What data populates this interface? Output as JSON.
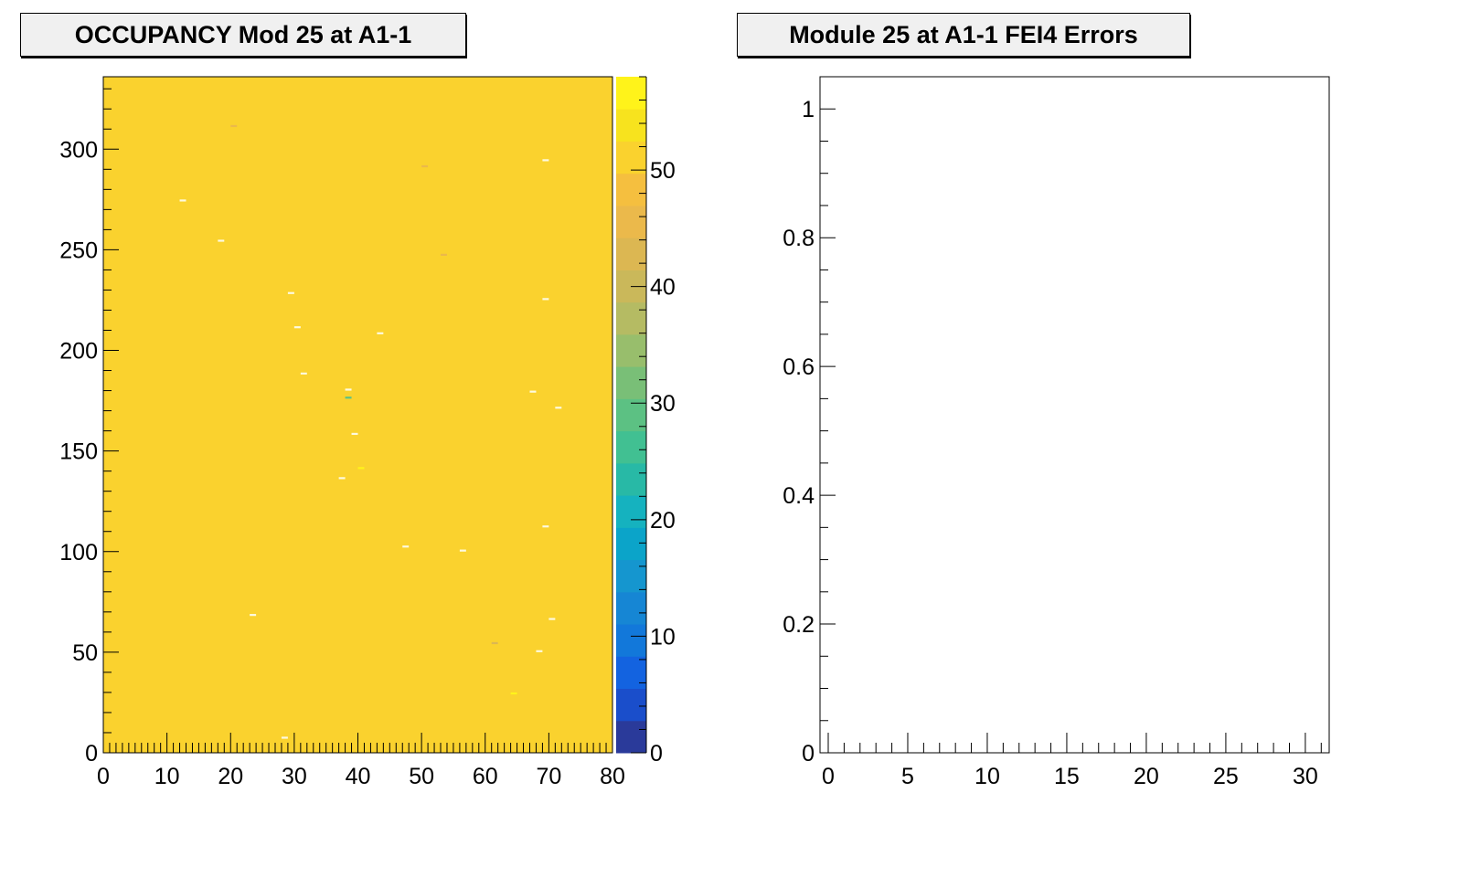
{
  "chart_data": [
    {
      "type": "heatmap",
      "title": "OCCUPANCY Mod 25 at A1-1",
      "xlim": [
        0,
        80
      ],
      "ylim": [
        0,
        336
      ],
      "x_ticks": [
        "0",
        "10",
        "20",
        "30",
        "40",
        "50",
        "60",
        "70",
        "80"
      ],
      "y_ticks": [
        "0",
        "50",
        "100",
        "150",
        "200",
        "250",
        "300"
      ],
      "z_range": [
        0,
        58
      ],
      "z_ticks": [
        "0",
        "10",
        "20",
        "30",
        "40",
        "50"
      ],
      "fill_value": 50,
      "palette": [
        "#2a3a9a",
        "#1a4ecb",
        "#1363e0",
        "#1278da",
        "#1686d4",
        "#1596cf",
        "#0ba4c9",
        "#15b2bf",
        "#28b9a6",
        "#41c092",
        "#5cc183",
        "#79bf77",
        "#98be6c",
        "#b5bb63",
        "#cab85a",
        "#dcb752",
        "#ebb94b",
        "#f5bf3f",
        "#fad22e",
        "#f7e31e",
        "#fff31a"
      ],
      "outliers": [
        {
          "x": 12,
          "y": 274,
          "v": 58
        },
        {
          "x": 18,
          "y": 254,
          "v": 58
        },
        {
          "x": 20,
          "y": 311,
          "v": 46
        },
        {
          "x": 23,
          "y": 68,
          "v": 58
        },
        {
          "x": 28,
          "y": 7,
          "v": 58
        },
        {
          "x": 29,
          "y": 228,
          "v": 58
        },
        {
          "x": 30,
          "y": 211,
          "v": 58
        },
        {
          "x": 31,
          "y": 188,
          "v": 58
        },
        {
          "x": 37,
          "y": 136,
          "v": 58
        },
        {
          "x": 38,
          "y": 180,
          "v": 58
        },
        {
          "x": 38,
          "y": 176,
          "v": 30
        },
        {
          "x": 39,
          "y": 158,
          "v": 58
        },
        {
          "x": 40,
          "y": 141,
          "v": 56
        },
        {
          "x": 43,
          "y": 208,
          "v": 58
        },
        {
          "x": 47,
          "y": 102,
          "v": 58
        },
        {
          "x": 50,
          "y": 291,
          "v": 46
        },
        {
          "x": 53,
          "y": 247,
          "v": 46
        },
        {
          "x": 56,
          "y": 100,
          "v": 58
        },
        {
          "x": 61,
          "y": 54,
          "v": 44
        },
        {
          "x": 64,
          "y": 29,
          "v": 56
        },
        {
          "x": 67,
          "y": 179,
          "v": 58
        },
        {
          "x": 68,
          "y": 50,
          "v": 58
        },
        {
          "x": 69,
          "y": 294,
          "v": 58
        },
        {
          "x": 69,
          "y": 225,
          "v": 58
        },
        {
          "x": 69,
          "y": 112,
          "v": 58
        },
        {
          "x": 70,
          "y": 66,
          "v": 58
        },
        {
          "x": 71,
          "y": 171,
          "v": 58
        }
      ]
    },
    {
      "type": "bar",
      "title": "Module 25 at A1-1 FEI4 Errors",
      "xlim": [
        0,
        31.5
      ],
      "ylim": [
        0,
        1.05
      ],
      "x_ticks": [
        "0",
        "5",
        "10",
        "15",
        "20",
        "25",
        "30"
      ],
      "y_ticks": [
        "0",
        "0.2",
        "0.4",
        "0.6",
        "0.8",
        "1"
      ],
      "values": []
    }
  ]
}
